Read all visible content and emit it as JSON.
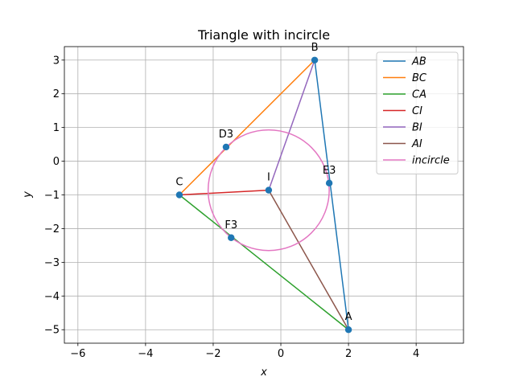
{
  "chart_data": {
    "type": "line",
    "title": "Triangle with incircle",
    "xlabel": "x",
    "ylabel": "y",
    "xlim": [
      -6.4,
      5.4
    ],
    "ylim": [
      -5.4,
      3.4
    ],
    "xticks": [
      -6,
      -4,
      -2,
      0,
      2,
      4
    ],
    "yticks": [
      -5,
      -4,
      -3,
      -2,
      -1,
      0,
      1,
      2,
      3
    ],
    "xtick_labels": [
      "−6",
      "−4",
      "−2",
      "0",
      "2",
      "4"
    ],
    "ytick_labels": [
      "−5",
      "−4",
      "−3",
      "−2",
      "−1",
      "0",
      "1",
      "2",
      "3"
    ],
    "grid": true,
    "legend_position": "top-right",
    "points": [
      {
        "label": "A",
        "x": 2.0,
        "y": -5.0
      },
      {
        "label": "B",
        "x": 1.0,
        "y": 3.0
      },
      {
        "label": "C",
        "x": -3.0,
        "y": -1.0
      },
      {
        "label": "I",
        "x": -0.36,
        "y": -0.86
      },
      {
        "label": "D3",
        "x": -1.62,
        "y": 0.42
      },
      {
        "label": "E3",
        "x": 1.43,
        "y": -0.65
      },
      {
        "label": "F3",
        "x": -1.47,
        "y": -2.27
      }
    ],
    "series": [
      {
        "name": "AB",
        "color": "#1f77b4",
        "x": [
          2.0,
          1.0
        ],
        "y": [
          -5.0,
          3.0
        ]
      },
      {
        "name": "BC",
        "color": "#ff7f0e",
        "x": [
          1.0,
          -3.0
        ],
        "y": [
          3.0,
          -1.0
        ]
      },
      {
        "name": "CA",
        "color": "#2ca02c",
        "x": [
          -3.0,
          2.0
        ],
        "y": [
          -1.0,
          -5.0
        ]
      },
      {
        "name": "CI",
        "color": "#d62728",
        "x": [
          -3.0,
          -0.36
        ],
        "y": [
          -1.0,
          -0.86
        ]
      },
      {
        "name": "BI",
        "color": "#9467bd",
        "x": [
          1.0,
          -0.36
        ],
        "y": [
          3.0,
          -0.86
        ]
      },
      {
        "name": "AI",
        "color": "#8c564b",
        "x": [
          2.0,
          -0.36
        ],
        "y": [
          -5.0,
          -0.86
        ]
      }
    ],
    "circle": {
      "name": "incircle",
      "color": "#e377c2",
      "cx": -0.36,
      "cy": -0.86,
      "r": 1.79
    },
    "marker_color": "#1f77b4"
  }
}
